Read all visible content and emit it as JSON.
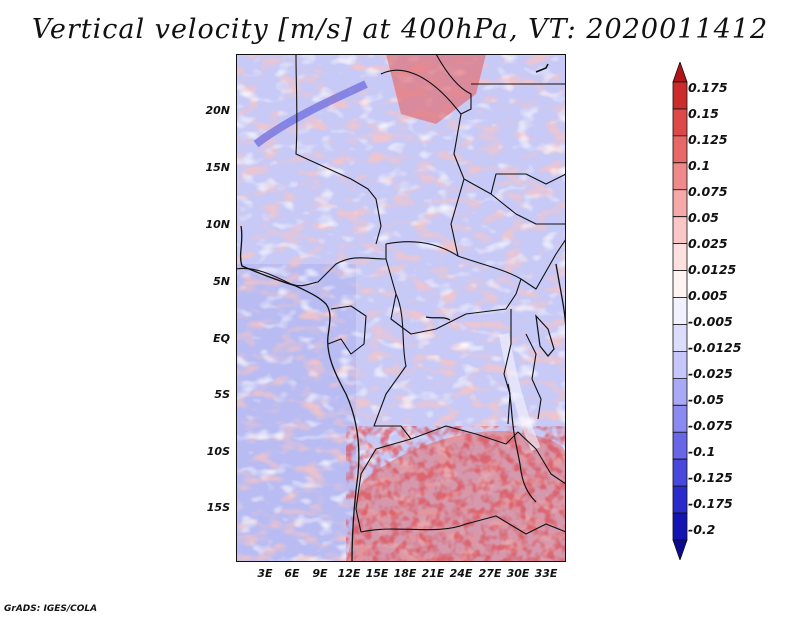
{
  "title": "Vertical velocity [m/s] at 400hPa, VT: 2020011412",
  "credit": "GrADS: IGES/COLA",
  "map": {
    "lat_labels": [
      "20N",
      "15N",
      "10N",
      "5N",
      "EQ",
      "5S",
      "10S",
      "15S"
    ],
    "lon_labels": [
      "3E",
      "6E",
      "9E",
      "12E",
      "15E",
      "18E",
      "21E",
      "24E",
      "27E",
      "30E",
      "33E"
    ]
  },
  "colorbar": {
    "labels": [
      "0.175",
      "0.15",
      "0.125",
      "0.1",
      "0.075",
      "0.05",
      "0.025",
      "0.0125",
      "0.005",
      "-0.005",
      "-0.0125",
      "-0.025",
      "-0.05",
      "-0.075",
      "-0.1",
      "-0.125",
      "-0.175",
      "-0.2"
    ],
    "colors": [
      "#b31418",
      "#cc2b2b",
      "#dd4848",
      "#e86767",
      "#f08a8a",
      "#f6a9a9",
      "#fac6c6",
      "#fde0e0",
      "#fff4f4",
      "#f2f2ff",
      "#dcdcfd",
      "#c6c6fb",
      "#a9a9f6",
      "#8a8af0",
      "#6767e8",
      "#4848dd",
      "#2b2bcc",
      "#1414b3",
      "#0a0a90"
    ]
  },
  "chart_data": {
    "type": "heatmap",
    "title": "Vertical velocity [m/s] at 400hPa, VT: 2020011412",
    "variable": "Vertical velocity",
    "units": "m/s",
    "level": "400hPa",
    "valid_time": "2020011412",
    "lon_range": [
      0,
      35
    ],
    "lat_range": [
      -20,
      25
    ],
    "contour_levels": [
      -0.2,
      -0.175,
      -0.125,
      -0.1,
      -0.075,
      -0.05,
      -0.025,
      -0.0125,
      -0.005,
      0.005,
      0.0125,
      0.025,
      0.05,
      0.075,
      0.1,
      0.125,
      0.15,
      0.175
    ]
  }
}
